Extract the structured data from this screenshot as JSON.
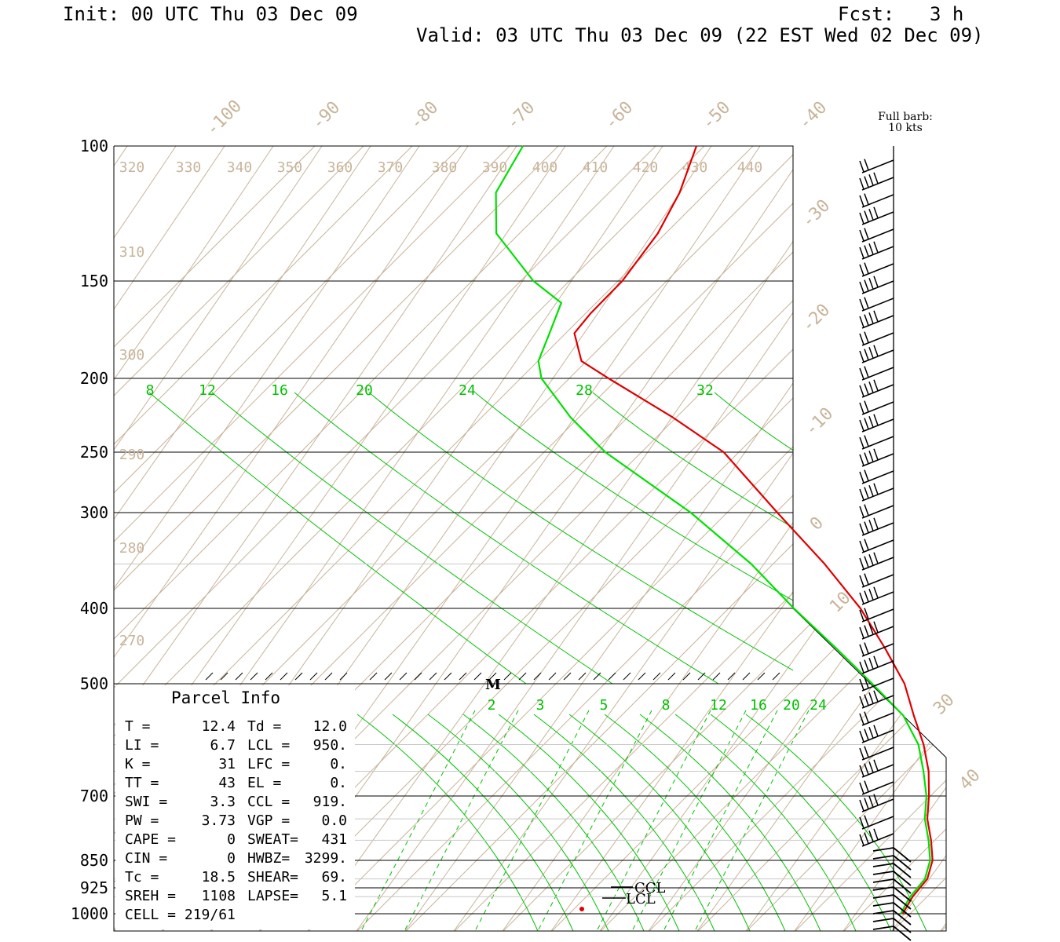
{
  "header": {
    "init": "Init: 00 UTC Thu 03 Dec 09",
    "fcst_label": "Fcst:",
    "fcst_value": "3 h",
    "valid": "Valid: 03 UTC Thu 03 Dec 09 (22 EST Wed 02 Dec 09)"
  },
  "barb_legend": {
    "line1": "Full barb:",
    "line2": "10 kts"
  },
  "colors": {
    "temperature": "#e00000",
    "dewpoint": "#00e000",
    "isotherm": "#c8b49a",
    "mixing_ratio": "#00c000",
    "frame": "#000000"
  },
  "chart_data": {
    "type": "line",
    "title": "",
    "pressure_levels": [
      "100",
      "150",
      "200",
      "250",
      "300",
      "400",
      "500",
      "700",
      "850",
      "925",
      "1000"
    ],
    "skewed_temperature_labels": [
      "-100",
      "-90",
      "-80",
      "-70",
      "-60",
      "-50",
      "-40",
      "-30",
      "-20",
      "-10",
      "0",
      "10",
      "30",
      "40"
    ],
    "theta_labels": [
      "320",
      "330",
      "340",
      "350",
      "360",
      "370",
      "380",
      "390",
      "400",
      "410",
      "420",
      "430",
      "440",
      "310",
      "300",
      "290",
      "280",
      "270"
    ],
    "mixing_ratio_labels_upper": [
      "8",
      "12",
      "16",
      "20",
      "24",
      "28",
      "32"
    ],
    "mixing_ratio_labels_lower": [
      "2",
      "3",
      "5",
      "8",
      "12",
      "16",
      "20",
      "24"
    ],
    "series": [
      {
        "name": "Temperature",
        "points": [
          [
            100,
            -66
          ],
          [
            115,
            -67
          ],
          [
            130,
            -69
          ],
          [
            150,
            -73
          ],
          [
            165,
            -77
          ],
          [
            175,
            -79
          ],
          [
            190,
            -77
          ],
          [
            200,
            -72
          ],
          [
            225,
            -60
          ],
          [
            250,
            -50
          ],
          [
            300,
            -38
          ],
          [
            350,
            -27
          ],
          [
            400,
            -18
          ],
          [
            450,
            -11
          ],
          [
            500,
            -5
          ],
          [
            550,
            -1
          ],
          [
            600,
            3
          ],
          [
            650,
            6
          ],
          [
            700,
            8
          ],
          [
            750,
            9.5
          ],
          [
            800,
            12
          ],
          [
            850,
            14
          ],
          [
            900,
            14.5
          ],
          [
            950,
            13
          ],
          [
            975,
            12.7
          ],
          [
            1000,
            12.4
          ]
        ]
      },
      {
        "name": "Dewpoint",
        "points": [
          [
            100,
            -92
          ],
          [
            115,
            -95
          ],
          [
            130,
            -94
          ],
          [
            150,
            -87
          ],
          [
            160,
            -82
          ],
          [
            175,
            -83
          ],
          [
            190,
            -84
          ],
          [
            200,
            -83
          ],
          [
            225,
            -77
          ],
          [
            250,
            -70
          ],
          [
            300,
            -53
          ],
          [
            350,
            -40
          ],
          [
            400,
            -30
          ],
          [
            450,
            -20
          ],
          [
            500,
            -11
          ],
          [
            550,
            -3
          ],
          [
            600,
            2
          ],
          [
            650,
            5
          ],
          [
            700,
            7.5
          ],
          [
            750,
            9
          ],
          [
            800,
            11.5
          ],
          [
            850,
            13.5
          ],
          [
            900,
            14
          ],
          [
            950,
            12.5
          ],
          [
            975,
            12.2
          ],
          [
            1000,
            12.0
          ]
        ]
      }
    ]
  },
  "parcel_info": {
    "title": "Parcel Info",
    "rows": [
      [
        "T  =",
        "12.4",
        "Td =",
        "12.0"
      ],
      [
        "LI =",
        "6.7",
        "LCL =",
        "950."
      ],
      [
        "K  =",
        "31",
        "LFC =",
        "0."
      ],
      [
        "TT =",
        "43",
        "EL  =",
        "0."
      ],
      [
        "SWI =",
        "3.3",
        "CCL =",
        "919."
      ],
      [
        "PW =",
        "3.73",
        "VGP =",
        "0.0"
      ],
      [
        "CAPE =",
        "0",
        "SWEAT=",
        "431"
      ],
      [
        "CIN =",
        "0",
        "HWBZ=",
        "3299."
      ],
      [
        "Tc =",
        "18.5",
        "SHEAR=",
        "69."
      ],
      [
        "SREH =",
        "1108",
        "LAPSE=",
        "5.1"
      ],
      [
        "CELL = 219/61",
        "",
        "",
        ""
      ]
    ]
  },
  "level_markers": {
    "ccl": "CCL",
    "lcl": "LCL",
    "m": "M"
  }
}
